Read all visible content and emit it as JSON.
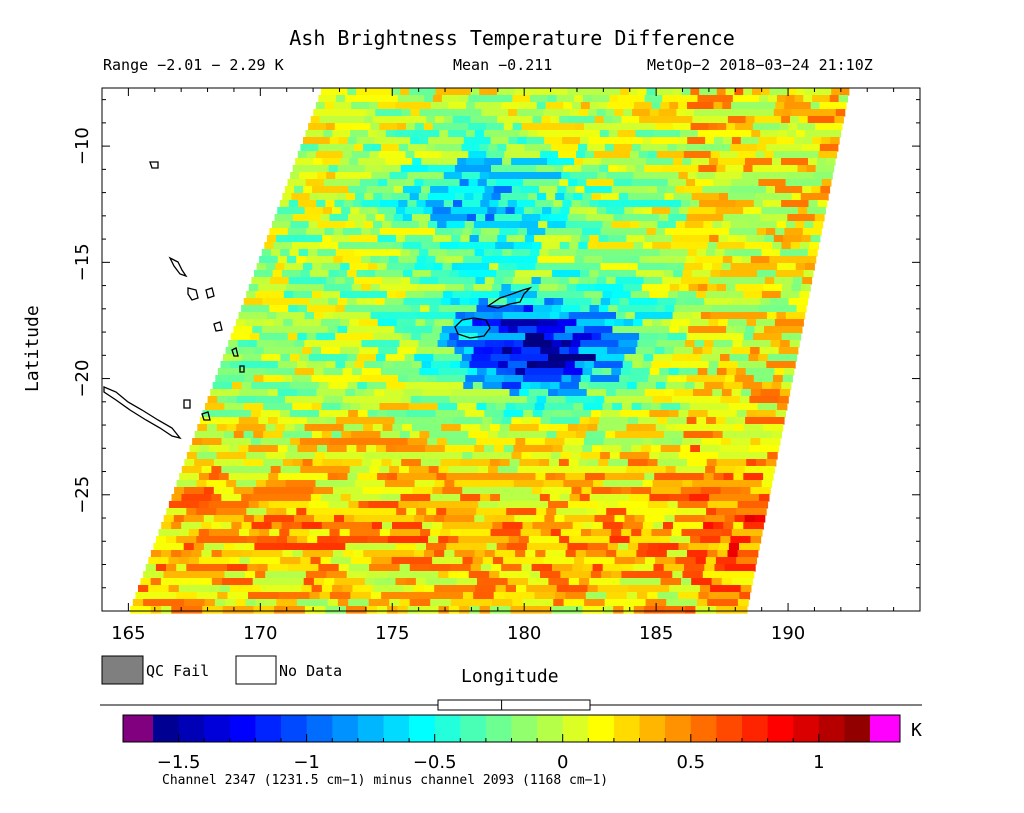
{
  "header": {
    "title": "Ash Brightness Temperature Difference",
    "range": "Range −2.01 − 2.29 K",
    "mean": "Mean −0.211",
    "satellite": "MetOp−2 2018−03−24 21:10Z"
  },
  "axes": {
    "ylabel": "Latitude",
    "xlabel": "Longitude",
    "yticks": [
      "−10",
      "−15",
      "−20",
      "−25"
    ],
    "xticks": [
      "165",
      "170",
      "175",
      "180",
      "185",
      "190"
    ]
  },
  "legend": {
    "qc_fail": "QC Fail",
    "no_data": "No Data",
    "qc_fail_color": "#7f7f7f",
    "no_data_color": "#ffffff"
  },
  "colorbar": {
    "unit": "K",
    "ticks": [
      "−1.5",
      "−1",
      "−0.5",
      "0",
      "0.5",
      "1"
    ],
    "tick_values": [
      -1.5,
      -1,
      -0.5,
      0,
      0.5,
      1
    ],
    "range": [
      -1.6,
      1.2
    ],
    "under_color": "#800080",
    "over_color": "#ff00ff",
    "note": "Channel 2347 (1231.5 cm−1) minus channel 2093 (1168 cm−1)"
  },
  "chart_data": {
    "type": "heatmap",
    "title": "Ash Brightness Temperature Difference",
    "xlabel": "Longitude",
    "ylabel": "Latitude",
    "xlim": [
      164,
      195
    ],
    "ylim": [
      -30,
      -7.5
    ],
    "unit": "K",
    "value_range": [
      -2.01,
      2.29
    ],
    "mean": -0.211,
    "swath_corners_lonlat": [
      [
        172.3,
        -7.5
      ],
      [
        192.3,
        -7.5
      ],
      [
        188.4,
        -30
      ],
      [
        165.0,
        -30
      ]
    ],
    "features": [
      {
        "name": "negative BTD core",
        "lon": 180,
        "lat": -18.5,
        "value": -1.4
      },
      {
        "name": "negative BTD region",
        "lon": 178,
        "lat": -12,
        "value": -0.7
      }
    ]
  }
}
